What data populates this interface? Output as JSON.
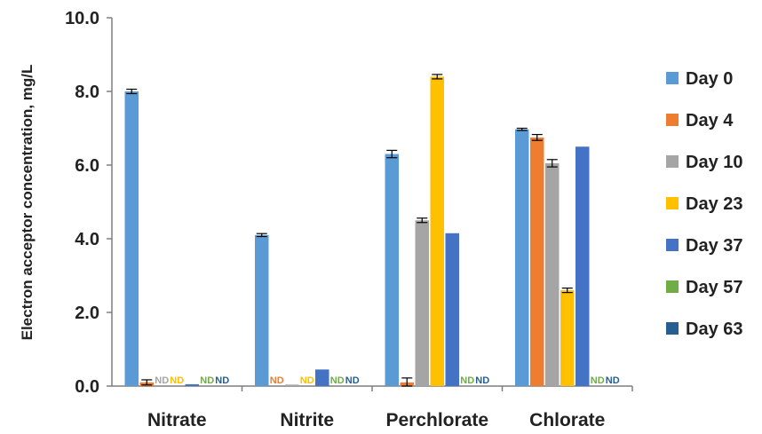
{
  "chart_data": {
    "type": "bar",
    "ylabel": "Electron acceptor concentration, mg/L",
    "xlabel": "",
    "ylim": [
      0,
      10
    ],
    "yticks": [
      "0.0",
      "2.0",
      "4.0",
      "6.0",
      "8.0",
      "10.0"
    ],
    "legend_position": "right",
    "categories": [
      "Nitrate",
      "Nitrite",
      "Perchlorate",
      "Chlorate"
    ],
    "not_detected_label": "ND",
    "series": [
      {
        "name": "Day 0",
        "color": "#5B9BD5",
        "values": [
          8.0,
          4.1,
          6.3,
          6.97
        ],
        "errors": [
          0.06,
          0.04,
          0.1,
          0.03
        ],
        "nd": [
          false,
          false,
          false,
          false
        ]
      },
      {
        "name": "Day 4",
        "color": "#ED7D31",
        "values": [
          0.1,
          null,
          0.1,
          6.75
        ],
        "errors": [
          0.07,
          0,
          0.12,
          0.08
        ],
        "nd": [
          false,
          true,
          false,
          false
        ]
      },
      {
        "name": "Day 10",
        "color": "#A5A5A5",
        "values": [
          null,
          0.04,
          4.5,
          6.05
        ],
        "errors": [
          0,
          0,
          0.06,
          0.1
        ],
        "nd": [
          true,
          false,
          false,
          false
        ]
      },
      {
        "name": "Day 23",
        "color": "#FFC000",
        "values": [
          null,
          null,
          8.4,
          2.6
        ],
        "errors": [
          0,
          0,
          0.06,
          0.06
        ],
        "nd": [
          true,
          true,
          false,
          false
        ]
      },
      {
        "name": "Day 37",
        "color": "#4472C4",
        "values": [
          0.05,
          0.45,
          4.15,
          6.5
        ],
        "errors": [
          0,
          0,
          0,
          0
        ],
        "nd": [
          false,
          false,
          false,
          false
        ]
      },
      {
        "name": "Day 57",
        "color": "#70AD47",
        "values": [
          null,
          null,
          null,
          null
        ],
        "errors": [
          0,
          0,
          0,
          0
        ],
        "nd": [
          true,
          true,
          true,
          true
        ]
      },
      {
        "name": "Day 63",
        "color": "#255E91",
        "values": [
          null,
          null,
          null,
          null
        ],
        "errors": [
          0,
          0,
          0,
          0
        ],
        "nd": [
          true,
          true,
          true,
          true
        ]
      }
    ]
  }
}
